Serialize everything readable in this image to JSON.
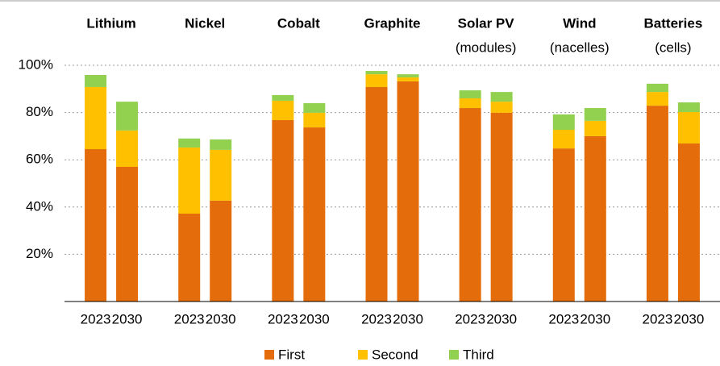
{
  "chart_data": {
    "type": "bar",
    "stacked": true,
    "groups": [
      {
        "name": "Lithium"
      },
      {
        "name": "Nickel"
      },
      {
        "name": "Cobalt"
      },
      {
        "name": "Graphite"
      },
      {
        "name": "Solar PV",
        "sub": "(modules)"
      },
      {
        "name": "Wind",
        "sub": "(nacelles)"
      },
      {
        "name": "Batteries",
        "sub": "(cells)"
      }
    ],
    "categories": [
      "2023",
      "2030",
      "2023",
      "2030",
      "2023",
      "2030",
      "2023",
      "2030",
      "2023",
      "2030",
      "2023",
      "2030",
      "2023",
      "2030"
    ],
    "series": [
      {
        "name": "First",
        "color": "#e46c0a",
        "values": [
          64.5,
          57,
          37.2,
          42.7,
          76.8,
          73.7,
          90.8,
          93.2,
          81.9,
          79.9,
          64.8,
          70,
          82.9,
          66.9
        ]
      },
      {
        "name": "Second",
        "color": "#ffc000",
        "values": [
          26.3,
          15.4,
          28,
          21.5,
          8.2,
          6.2,
          5.4,
          1.7,
          4.1,
          4.7,
          7.9,
          6.5,
          5.8,
          13.3
        ]
      },
      {
        "name": "Third",
        "color": "#92d050",
        "values": [
          5.1,
          12.2,
          3.8,
          4.4,
          2.4,
          4.1,
          1.4,
          1.3,
          3.4,
          4.1,
          6.5,
          5.4,
          3.5,
          4.1
        ]
      }
    ],
    "ylim": [
      0,
      100
    ],
    "yticks": [
      {
        "value": 20,
        "label": "20%"
      },
      {
        "value": 40,
        "label": "40%"
      },
      {
        "value": 60,
        "label": "60%"
      },
      {
        "value": 80,
        "label": "80%"
      },
      {
        "value": 100,
        "label": "100%"
      }
    ],
    "grid": true,
    "legend": "bottom"
  }
}
